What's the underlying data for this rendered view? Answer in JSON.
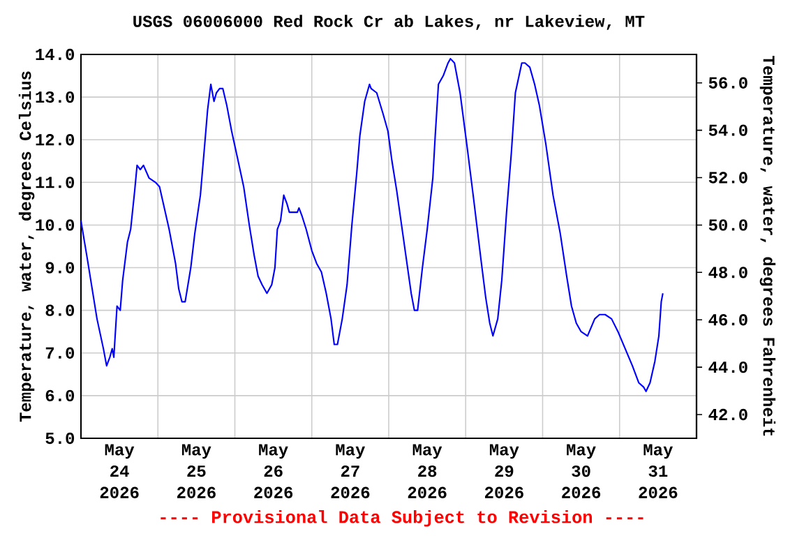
{
  "chart_data": {
    "type": "line",
    "title": "USGS 06006000 Red Rock Cr ab Lakes, nr Lakeview, MT",
    "ylabel": "Temperature, water, degrees Celsius",
    "y2label": "Temperature, water, degrees Fahrenheit",
    "annotations": [
      "---- Provisional Data Subject to Revision ----"
    ],
    "xlim": [
      "2026-05-24T00:00",
      "2026-06-01T00:00"
    ],
    "xticks": [
      {
        "value": "2026-05-24T12:00",
        "label": "May 24 2026"
      },
      {
        "value": "2026-05-25T00:00",
        "label": null
      },
      {
        "value": "2026-05-25T12:00",
        "label": "May 25 2026"
      },
      {
        "value": "2026-05-26T00:00",
        "label": null
      },
      {
        "value": "2026-05-26T12:00",
        "label": "May 26 2026"
      },
      {
        "value": "2026-05-27T00:00",
        "label": null
      },
      {
        "value": "2026-05-27T12:00",
        "label": "May 27 2026"
      },
      {
        "value": "2026-05-28T00:00",
        "label": null
      },
      {
        "value": "2026-05-28T12:00",
        "label": "May 28 2026"
      },
      {
        "value": "2026-05-29T00:00",
        "label": null
      },
      {
        "value": "2026-05-29T12:00",
        "label": "May 29 2026"
      },
      {
        "value": "2026-05-30T00:00",
        "label": null
      },
      {
        "value": "2026-05-30T12:00",
        "label": "May 30 2026"
      },
      {
        "value": "2026-05-31T00:00",
        "label": null
      },
      {
        "value": "2026-05-31T12:00",
        "label": "May 31 2026"
      }
    ],
    "ylim": [
      5,
      14
    ],
    "yticks": [
      {
        "value": 5,
        "label": "5.0"
      },
      {
        "value": 6,
        "label": "6.0"
      },
      {
        "value": 7,
        "label": "7.0"
      },
      {
        "value": 8,
        "label": "8.0"
      },
      {
        "value": 9,
        "label": "9.0"
      },
      {
        "value": 10,
        "label": "10.0"
      },
      {
        "value": 11,
        "label": "11.0"
      },
      {
        "value": 12,
        "label": "12.0"
      },
      {
        "value": 13,
        "label": "13.0"
      },
      {
        "value": 14,
        "label": "14.0"
      }
    ],
    "y2lim": [
      41,
      57.2
    ],
    "y2ticks": [
      {
        "value": 42,
        "label": "42.0"
      },
      {
        "value": 44,
        "label": "44.0"
      },
      {
        "value": 46,
        "label": "46.0"
      },
      {
        "value": 48,
        "label": "48.0"
      },
      {
        "value": 50,
        "label": "50.0"
      },
      {
        "value": 52,
        "label": "52.0"
      },
      {
        "value": 54,
        "label": "54.0"
      },
      {
        "value": 56,
        "label": "56.0"
      }
    ],
    "grid": true,
    "x": [
      "2026-05-24T00:00",
      "2026-05-24T02:00",
      "2026-05-24T05:00",
      "2026-05-24T07:00",
      "2026-05-24T08:00",
      "2026-05-24T09:00",
      "2026-05-24T09:45",
      "2026-05-24T10:15",
      "2026-05-24T11:15",
      "2026-05-24T12:15",
      "2026-05-24T13:00",
      "2026-05-24T14:30",
      "2026-05-24T15:30",
      "2026-05-24T16:45",
      "2026-05-24T17:30",
      "2026-05-24T18:30",
      "2026-05-24T19:30",
      "2026-05-24T21:15",
      "2026-05-24T23:15",
      "2026-05-25T00:30",
      "2026-05-25T02:00",
      "2026-05-25T03:30",
      "2026-05-25T05:30",
      "2026-05-25T06:30",
      "2026-05-25T07:30",
      "2026-05-25T08:30",
      "2026-05-25T10:15",
      "2026-05-25T11:30",
      "2026-05-25T13:15",
      "2026-05-25T14:30",
      "2026-05-25T15:30",
      "2026-05-25T16:30",
      "2026-05-25T17:30",
      "2026-05-25T18:15",
      "2026-05-25T19:15",
      "2026-05-25T20:15",
      "2026-05-25T21:30",
      "2026-05-25T23:00",
      "2026-05-26T00:45",
      "2026-05-26T02:45",
      "2026-05-26T04:30",
      "2026-05-26T06:00",
      "2026-05-26T07:15",
      "2026-05-26T08:30",
      "2026-05-26T10:00",
      "2026-05-26T11:30",
      "2026-05-26T12:30",
      "2026-05-26T13:15",
      "2026-05-26T14:15",
      "2026-05-26T15:15",
      "2026-05-26T16:15",
      "2026-05-26T17:00",
      "2026-05-26T18:00",
      "2026-05-26T19:30",
      "2026-05-26T20:00",
      "2026-05-26T21:00",
      "2026-05-26T22:15",
      "2026-05-27T00:00",
      "2026-05-27T01:30",
      "2026-05-27T03:00",
      "2026-05-27T04:30",
      "2026-05-27T06:00",
      "2026-05-27T07:00",
      "2026-05-27T08:00",
      "2026-05-27T09:30",
      "2026-05-27T11:00",
      "2026-05-27T12:30",
      "2026-05-27T14:00",
      "2026-05-27T15:00",
      "2026-05-27T16:30",
      "2026-05-27T18:00",
      "2026-05-27T18:30",
      "2026-05-27T20:15",
      "2026-05-27T22:15",
      "2026-05-27T23:45",
      "2026-05-28T01:00",
      "2026-05-28T02:30",
      "2026-05-28T04:00",
      "2026-05-28T05:30",
      "2026-05-28T07:00",
      "2026-05-28T08:00",
      "2026-05-28T09:00",
      "2026-05-28T10:30",
      "2026-05-28T12:00",
      "2026-05-28T13:45",
      "2026-05-28T14:30",
      "2026-05-28T15:30",
      "2026-05-28T17:00",
      "2026-05-28T18:30",
      "2026-05-28T19:15",
      "2026-05-28T20:30",
      "2026-05-28T22:15",
      "2026-05-29T00:30",
      "2026-05-29T02:30",
      "2026-05-29T04:45",
      "2026-05-29T06:15",
      "2026-05-29T07:30",
      "2026-05-29T08:30",
      "2026-05-29T10:00",
      "2026-05-29T11:15",
      "2026-05-29T12:45",
      "2026-05-29T14:15",
      "2026-05-29T15:30",
      "2026-05-29T17:30",
      "2026-05-29T18:30",
      "2026-05-29T20:00",
      "2026-05-29T21:30",
      "2026-05-29T23:00",
      "2026-05-30T01:00",
      "2026-05-30T03:15",
      "2026-05-30T05:30",
      "2026-05-30T07:30",
      "2026-05-30T09:00",
      "2026-05-30T10:30",
      "2026-05-30T12:00",
      "2026-05-30T14:00",
      "2026-05-30T16:15",
      "2026-05-30T17:45",
      "2026-05-30T19:30",
      "2026-05-30T21:30",
      "2026-05-30T23:30",
      "2026-05-31T01:45",
      "2026-05-31T04:00",
      "2026-05-31T06:00",
      "2026-05-31T07:30",
      "2026-05-31T08:15",
      "2026-05-31T09:30",
      "2026-05-31T11:00",
      "2026-05-31T12:15",
      "2026-05-31T13:00",
      "2026-05-31T13:30"
    ],
    "series": [
      {
        "color": "#0000ff",
        "values": [
          10.1,
          9.2,
          7.8,
          7.1,
          6.7,
          6.9,
          7.1,
          6.9,
          8.1,
          8.0,
          8.7,
          9.6,
          9.9,
          10.8,
          11.4,
          11.3,
          11.4,
          11.1,
          11.0,
          10.9,
          10.4,
          9.9,
          9.1,
          8.5,
          8.2,
          8.2,
          9.0,
          9.8,
          10.7,
          11.8,
          12.7,
          13.3,
          12.9,
          13.1,
          13.2,
          13.2,
          12.8,
          12.2,
          11.6,
          10.9,
          10.0,
          9.3,
          8.8,
          8.6,
          8.4,
          8.6,
          9.0,
          9.9,
          10.1,
          10.7,
          10.5,
          10.3,
          10.3,
          10.3,
          10.4,
          10.2,
          9.9,
          9.4,
          9.1,
          8.9,
          8.4,
          7.8,
          7.2,
          7.2,
          7.8,
          8.6,
          10.0,
          11.2,
          12.1,
          12.9,
          13.3,
          13.2,
          13.1,
          12.6,
          12.2,
          11.5,
          10.8,
          10.0,
          9.2,
          8.4,
          8.0,
          8.0,
          9.0,
          9.9,
          11.1,
          12.1,
          13.3,
          13.5,
          13.8,
          13.9,
          13.8,
          13.1,
          11.8,
          10.6,
          9.2,
          8.3,
          7.7,
          7.4,
          7.8,
          8.7,
          10.3,
          11.7,
          13.1,
          13.8,
          13.8,
          13.7,
          13.3,
          12.8,
          11.9,
          10.7,
          9.8,
          8.8,
          8.1,
          7.7,
          7.5,
          7.4,
          7.8,
          7.9,
          7.9,
          7.8,
          7.5,
          7.1,
          6.7,
          6.3,
          6.2,
          6.1,
          6.3,
          6.8,
          7.4,
          8.2,
          8.4
        ]
      }
    ]
  }
}
